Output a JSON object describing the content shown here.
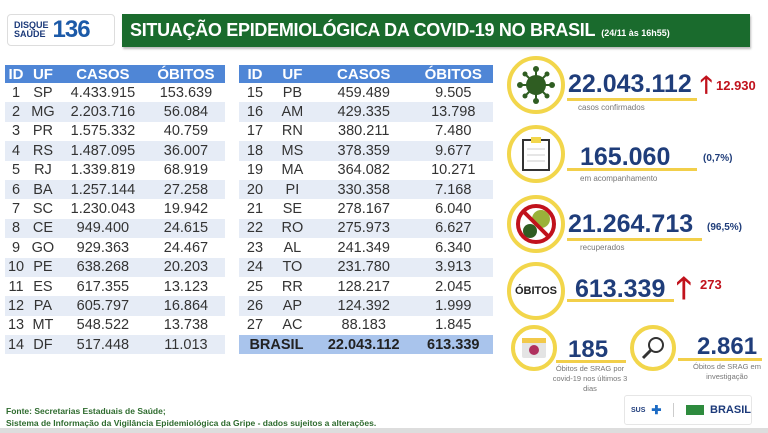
{
  "logo": {
    "line1": "DISQUE",
    "line2": "SAÚDE",
    "number": "136"
  },
  "header": {
    "title": "SITUAÇÃO EPIDEMIOLÓGICA DA COVID-19 NO BRASIL",
    "date": "(24/11 às 16h55)"
  },
  "table": {
    "headers": [
      "ID",
      "UF",
      "CASOS",
      "ÓBITOS"
    ],
    "left": [
      [
        "1",
        "SP",
        "4.433.915",
        "153.639"
      ],
      [
        "2",
        "MG",
        "2.203.716",
        "56.084"
      ],
      [
        "3",
        "PR",
        "1.575.332",
        "40.759"
      ],
      [
        "4",
        "RS",
        "1.487.095",
        "36.007"
      ],
      [
        "5",
        "RJ",
        "1.339.819",
        "68.919"
      ],
      [
        "6",
        "BA",
        "1.257.144",
        "27.258"
      ],
      [
        "7",
        "SC",
        "1.230.043",
        "19.942"
      ],
      [
        "8",
        "CE",
        "949.400",
        "24.615"
      ],
      [
        "9",
        "GO",
        "929.363",
        "24.467"
      ],
      [
        "10",
        "PE",
        "638.268",
        "20.203"
      ],
      [
        "11",
        "ES",
        "617.355",
        "13.123"
      ],
      [
        "12",
        "PA",
        "605.797",
        "16.864"
      ],
      [
        "13",
        "MT",
        "548.522",
        "13.738"
      ],
      [
        "14",
        "DF",
        "517.448",
        "11.013"
      ]
    ],
    "right": [
      [
        "15",
        "PB",
        "459.489",
        "9.505"
      ],
      [
        "16",
        "AM",
        "429.335",
        "13.798"
      ],
      [
        "17",
        "RN",
        "380.211",
        "7.480"
      ],
      [
        "18",
        "MS",
        "378.359",
        "9.677"
      ],
      [
        "19",
        "MA",
        "364.082",
        "10.271"
      ],
      [
        "20",
        "PI",
        "330.358",
        "7.168"
      ],
      [
        "21",
        "SE",
        "278.167",
        "6.040"
      ],
      [
        "22",
        "RO",
        "275.973",
        "6.627"
      ],
      [
        "23",
        "AL",
        "241.349",
        "6.340"
      ],
      [
        "24",
        "TO",
        "231.780",
        "3.913"
      ],
      [
        "25",
        "RR",
        "128.217",
        "2.045"
      ],
      [
        "26",
        "AP",
        "124.392",
        "1.999"
      ],
      [
        "27",
        "AC",
        "88.183",
        "1.845"
      ]
    ],
    "total": {
      "label": "BRASIL",
      "casos": "22.043.112",
      "obitos": "613.339"
    }
  },
  "stats": {
    "confirmed": {
      "value": "22.043.112",
      "delta": "12.930",
      "label": "casos confirmados"
    },
    "monitoring": {
      "value": "165.060",
      "pct": "(0,7%)",
      "label": "em acompanhamento"
    },
    "recovered": {
      "value": "21.264.713",
      "pct": "(96,5%)",
      "label": "recuperados"
    },
    "deaths": {
      "badge": "ÓBITOS",
      "value": "613.339",
      "delta": "273"
    },
    "srag3": {
      "value": "185",
      "label": "Óbitos de SRAG por covid-19 nos últimos 3 dias"
    },
    "srag_inv": {
      "value": "2.861",
      "label": "Óbitos de SRAG em investigação"
    }
  },
  "footer": {
    "line1": "Fonte: Secretarias Estaduais de Saúde;",
    "line2": "Sistema de Informação da Vigilância Epidemiológica da Gripe - dados sujeitos a alterações.",
    "sus": "SUS",
    "brasil": "BRASIL"
  },
  "colors": {
    "green": "#1a6b2d",
    "blue_header": "#4f86d6",
    "navy": "#1f3d7a",
    "red": "#c1121c",
    "yellow": "#f2d64b"
  }
}
